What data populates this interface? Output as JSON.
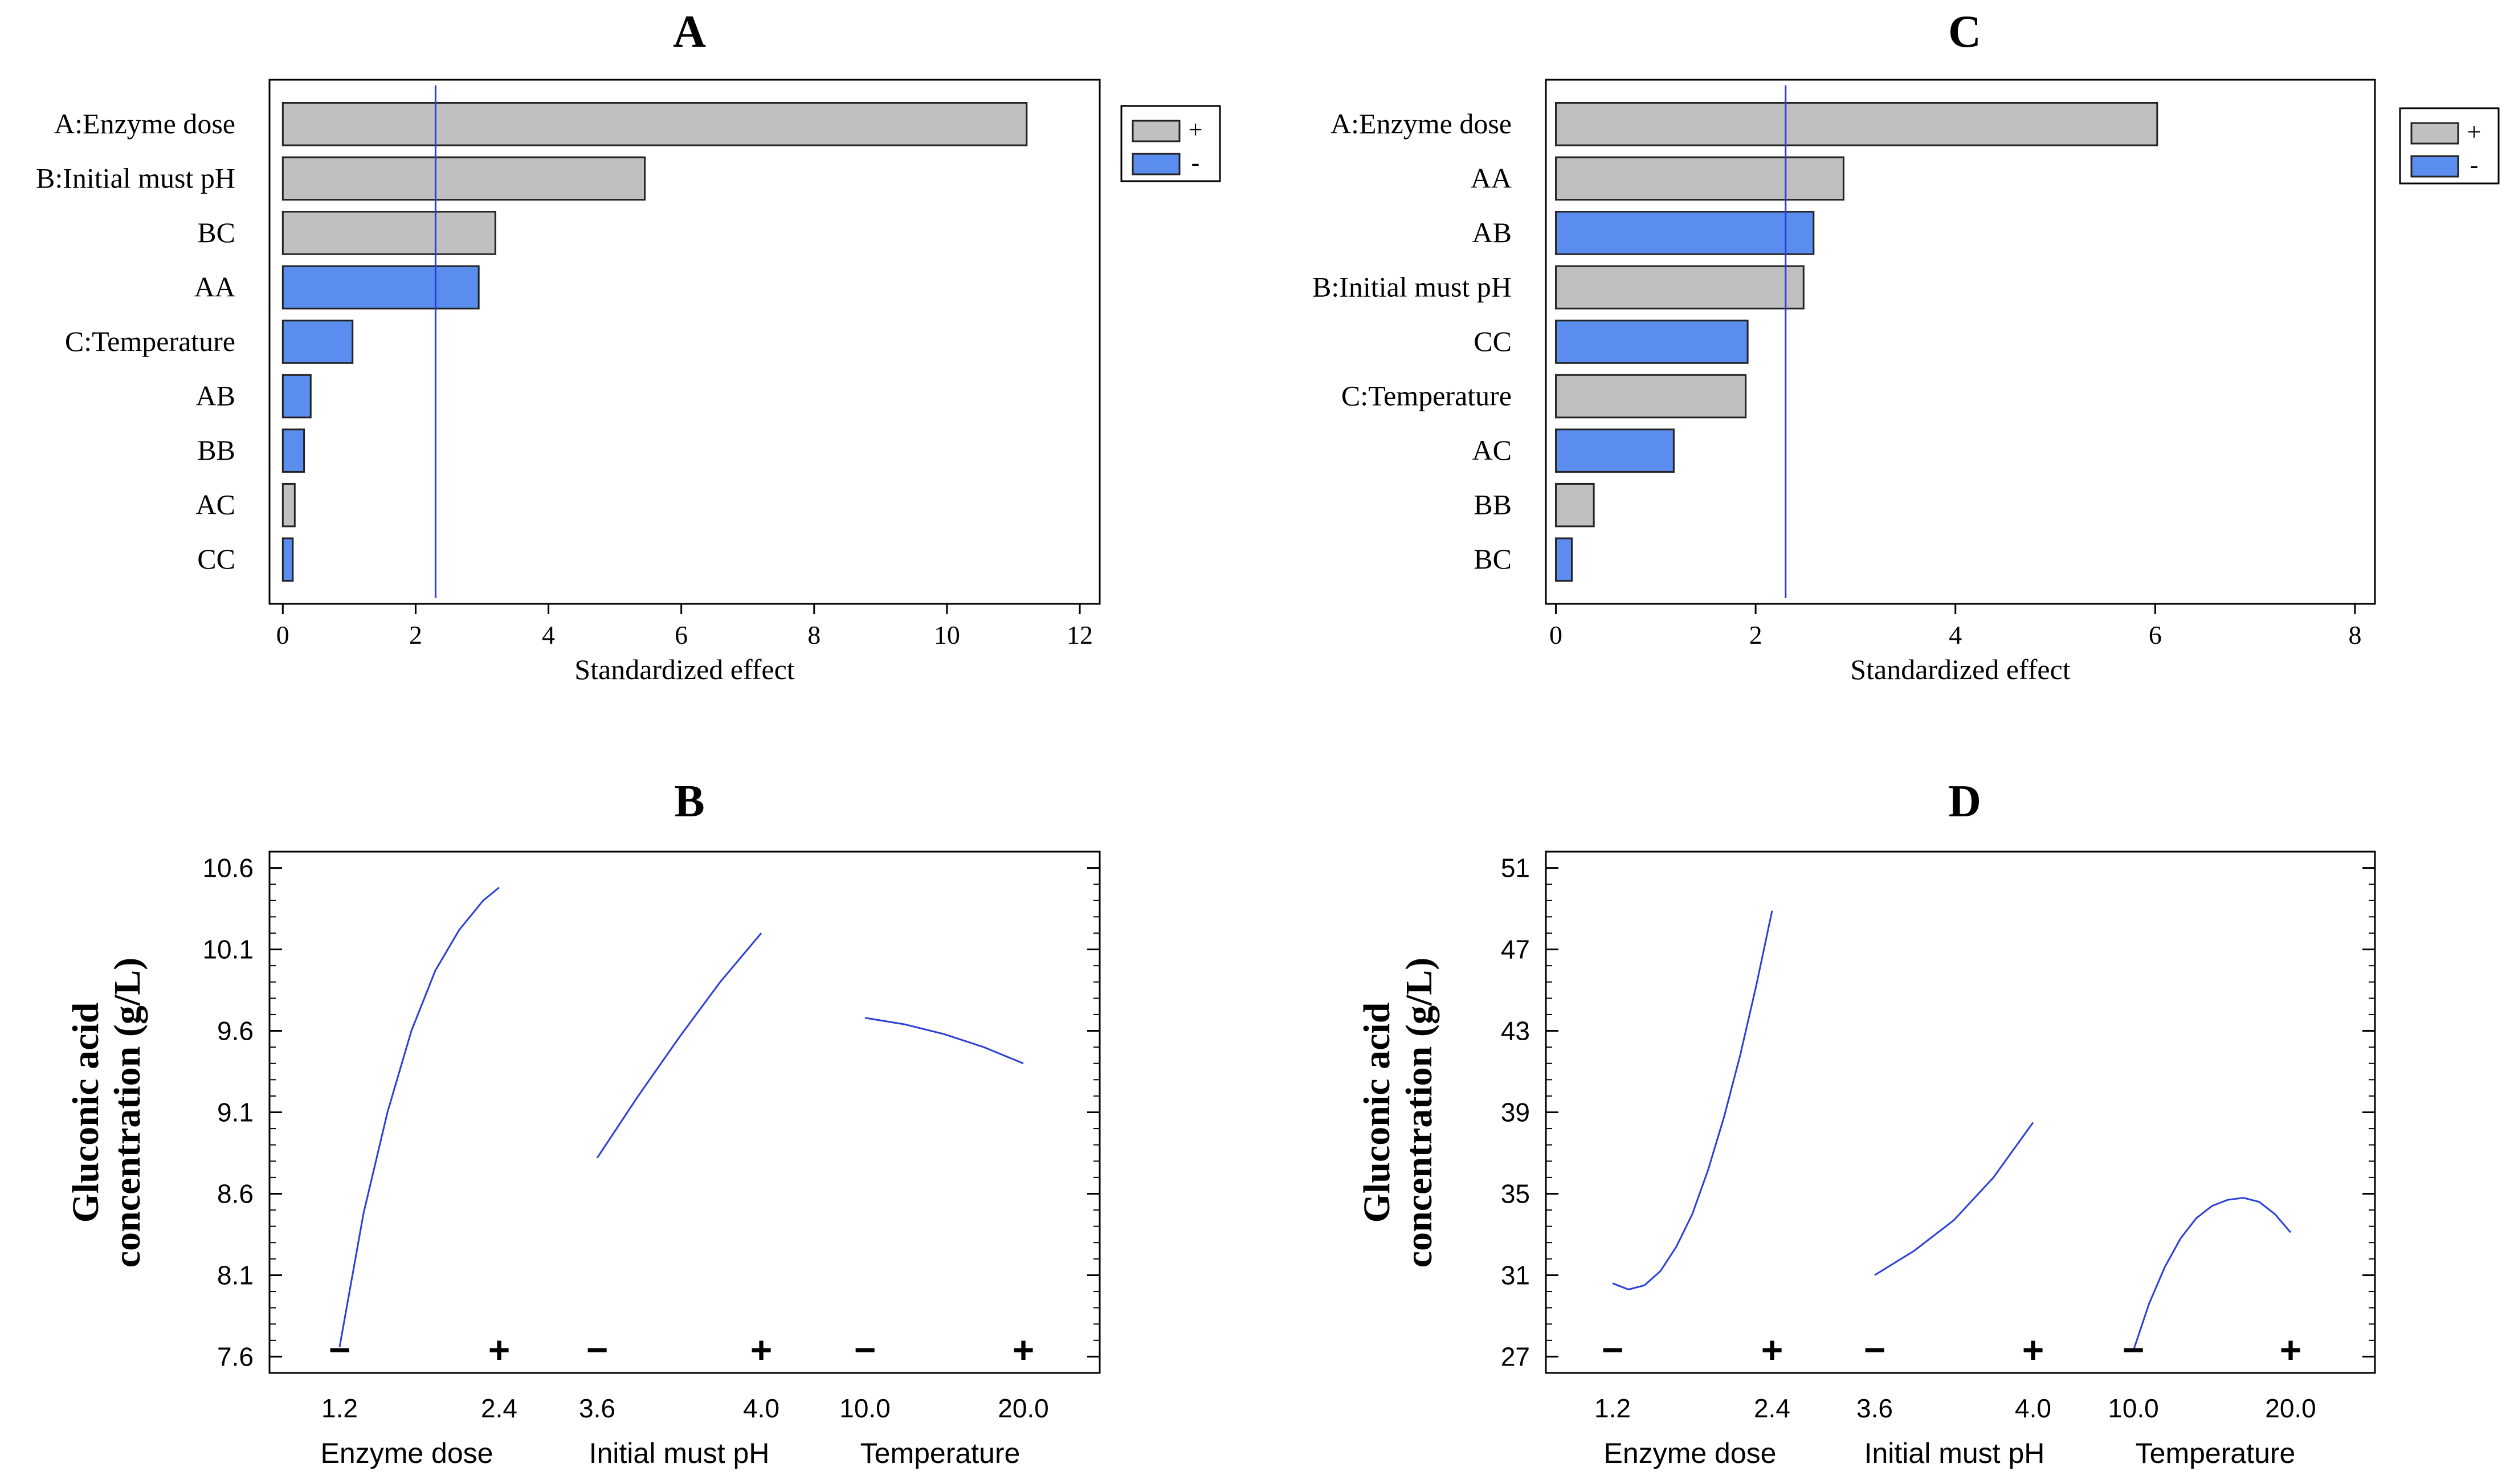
{
  "chart_data": [
    {
      "id": "A",
      "type": "bar",
      "title": "A",
      "orientation": "horizontal",
      "categories": [
        "A:Enzyme dose",
        "B:Initial must pH",
        "BC",
        "AA",
        "C:Temperature",
        "AB",
        "BB",
        "AC",
        "CC"
      ],
      "values": [
        11.2,
        5.45,
        3.2,
        2.95,
        1.05,
        0.42,
        0.32,
        0.18,
        0.15
      ],
      "signs": [
        "+",
        "+",
        "+",
        "-",
        "-",
        "-",
        "-",
        "+",
        "-"
      ],
      "xlabel": "Standardized effect",
      "xlim": [
        -0.2,
        12.3
      ],
      "xticks": [
        0,
        2,
        4,
        6,
        8,
        10,
        12
      ],
      "reference_line": 2.3,
      "legend": {
        "position": "top-right",
        "entries": [
          {
            "label": "+",
            "color": "#c0c0c0"
          },
          {
            "label": "-",
            "color": "#5b8def"
          }
        ]
      }
    },
    {
      "id": "C",
      "type": "bar",
      "title": "C",
      "orientation": "horizontal",
      "categories": [
        "A:Enzyme dose",
        "AA",
        "AB",
        "B:Initial must pH",
        "CC",
        "C:Temperature",
        "AC",
        "BB",
        "BC"
      ],
      "values": [
        6.02,
        2.88,
        2.58,
        2.48,
        1.92,
        1.9,
        1.18,
        0.38,
        0.16
      ],
      "signs": [
        "+",
        "+",
        "-",
        "+",
        "-",
        "+",
        "-",
        "+",
        "-"
      ],
      "xlabel": "Standardized effect",
      "xlim": [
        -0.1,
        8.2
      ],
      "xticks": [
        0,
        2,
        4,
        6,
        8
      ],
      "reference_line": 2.3,
      "legend": {
        "position": "top-right",
        "entries": [
          {
            "label": "+",
            "color": "#c0c0c0"
          },
          {
            "label": "-",
            "color": "#5b8def"
          }
        ]
      }
    },
    {
      "id": "B",
      "type": "line",
      "title": "B",
      "ylabel_line1": "Gluconic acid",
      "ylabel_line2": "concentration (g/L)",
      "ylim": [
        7.5,
        10.7
      ],
      "yticks": [
        "7.6",
        "8.1",
        "8.6",
        "9.1",
        "9.6",
        "10.1",
        "10.6"
      ],
      "factors": [
        {
          "name": "Enzyme dose",
          "low": "1.2",
          "high": "2.4",
          "x": [
            0,
            0.15,
            0.3,
            0.45,
            0.6,
            0.75,
            0.9,
            1.0
          ],
          "y": [
            7.66,
            8.48,
            9.1,
            9.6,
            9.97,
            10.22,
            10.4,
            10.48
          ]
        },
        {
          "name": "Initial must pH",
          "low": "3.6",
          "high": "4.0",
          "x": [
            0,
            0.25,
            0.5,
            0.75,
            1.0
          ],
          "y": [
            8.82,
            9.2,
            9.56,
            9.9,
            10.2
          ]
        },
        {
          "name": "Temperature",
          "low": "10.0",
          "high": "20.0",
          "x": [
            0,
            0.25,
            0.5,
            0.75,
            1.0
          ],
          "y": [
            9.68,
            9.64,
            9.58,
            9.5,
            9.4
          ]
        }
      ],
      "minus_label": "−",
      "plus_label": "+"
    },
    {
      "id": "D",
      "type": "line",
      "title": "D",
      "ylabel_line1": "Gluconic acid",
      "ylabel_line2": "concentration (g/L)",
      "ylim": [
        26.2,
        51.8
      ],
      "yticks": [
        "27",
        "31",
        "35",
        "39",
        "43",
        "47",
        "51"
      ],
      "factors": [
        {
          "name": "Enzyme dose",
          "low": "1.2",
          "high": "2.4",
          "x": [
            0,
            0.1,
            0.2,
            0.3,
            0.4,
            0.5,
            0.6,
            0.7,
            0.8,
            0.9,
            1.0
          ],
          "y": [
            30.6,
            30.3,
            30.5,
            31.2,
            32.4,
            34.0,
            36.2,
            38.8,
            41.8,
            45.2,
            48.9
          ]
        },
        {
          "name": "Initial must pH",
          "low": "3.6",
          "high": "4.0",
          "x": [
            0,
            0.25,
            0.5,
            0.75,
            1.0
          ],
          "y": [
            31.0,
            32.2,
            33.7,
            35.8,
            38.5
          ]
        },
        {
          "name": "Temperature",
          "low": "10.0",
          "high": "20.0",
          "x": [
            0,
            0.1,
            0.2,
            0.3,
            0.4,
            0.5,
            0.6,
            0.7,
            0.8,
            0.9,
            1.0
          ],
          "y": [
            27.3,
            29.6,
            31.4,
            32.8,
            33.8,
            34.4,
            34.7,
            34.8,
            34.6,
            34.0,
            33.1
          ]
        }
      ],
      "minus_label": "−",
      "plus_label": "+"
    }
  ]
}
